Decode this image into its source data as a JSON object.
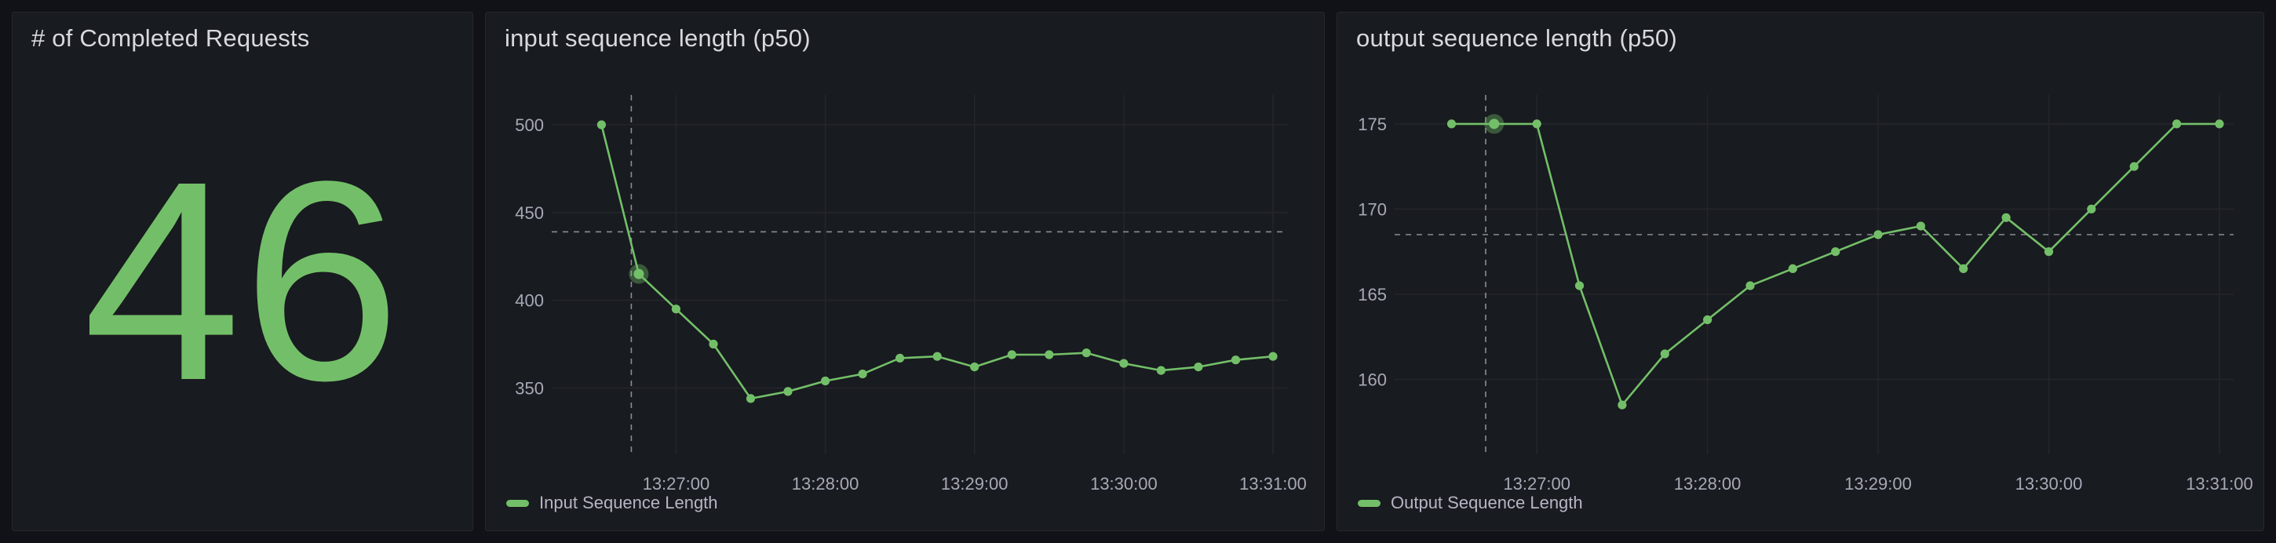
{
  "colors": {
    "accent_green": "#73bf69",
    "panel_bg": "#181b1f",
    "page_bg": "#111217",
    "text": "#ccccdc",
    "crosshair": "#8a8d94"
  },
  "panels": {
    "stat": {
      "title": "# of Completed Requests",
      "value": "46",
      "value_color": "#73bf69"
    },
    "input": {
      "title": "input sequence length (p50)",
      "legend": "Input Sequence Length"
    },
    "output": {
      "title": "output sequence length (p50)",
      "legend": "Output Sequence Length"
    }
  },
  "chart_data": [
    {
      "id": "chart-input",
      "type": "line",
      "title": "input sequence length (p50)",
      "xlabel": "",
      "ylabel": "",
      "grid": true,
      "legend_position": "bottom",
      "x": [
        "13:26:30",
        "13:26:45",
        "13:27:00",
        "13:27:15",
        "13:27:30",
        "13:27:45",
        "13:28:00",
        "13:28:15",
        "13:28:30",
        "13:28:45",
        "13:29:00",
        "13:29:15",
        "13:29:30",
        "13:29:45",
        "13:30:00",
        "13:30:15",
        "13:30:30",
        "13:30:45",
        "13:31:00"
      ],
      "series": [
        {
          "name": "Input Sequence Length",
          "color": "#73bf69",
          "values": [
            500,
            415,
            395,
            375,
            344,
            348,
            354,
            358,
            367,
            368,
            362,
            369,
            369,
            370,
            364,
            360,
            362,
            366,
            368
          ]
        }
      ],
      "ylim": [
        318,
        517
      ],
      "yticks": [
        350,
        400,
        450,
        500
      ],
      "xlim": [
        "13:26:10",
        "13:31:06"
      ],
      "xticks": [
        "13:27:00",
        "13:28:00",
        "13:29:00",
        "13:30:00",
        "13:31:00"
      ],
      "crosshair": {
        "x": "13:26:42",
        "y": 439,
        "highlight_index": 1
      }
    },
    {
      "id": "chart-output",
      "type": "line",
      "title": "output sequence length (p50)",
      "xlabel": "",
      "ylabel": "",
      "grid": true,
      "legend_position": "bottom",
      "x": [
        "13:26:30",
        "13:26:45",
        "13:27:00",
        "13:27:15",
        "13:27:30",
        "13:27:45",
        "13:28:00",
        "13:28:15",
        "13:28:30",
        "13:28:45",
        "13:29:00",
        "13:29:15",
        "13:29:30",
        "13:29:45",
        "13:30:00",
        "13:30:15",
        "13:30:30",
        "13:30:45",
        "13:31:00"
      ],
      "series": [
        {
          "name": "Output Sequence Length",
          "color": "#73bf69",
          "values": [
            175,
            175,
            175,
            165.5,
            158.5,
            161.5,
            163.5,
            165.5,
            166.5,
            167.5,
            168.5,
            169,
            166.5,
            169.5,
            167.5,
            170,
            172.5,
            175,
            175
          ]
        }
      ],
      "ylim": [
        156.2,
        176.7
      ],
      "yticks": [
        160,
        165,
        170,
        175
      ],
      "xlim": [
        "13:26:10",
        "13:31:05"
      ],
      "xticks": [
        "13:27:00",
        "13:28:00",
        "13:29:00",
        "13:30:00",
        "13:31:00"
      ],
      "crosshair": {
        "x": "13:26:42",
        "y": 168.5,
        "highlight_index": 1
      }
    }
  ]
}
